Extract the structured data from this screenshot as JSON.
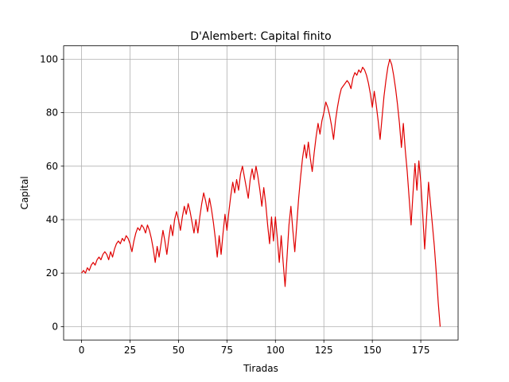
{
  "chart_data": {
    "type": "line",
    "title": "D'Alembert: Capital finito",
    "xlabel": "Tiradas",
    "ylabel": "Capital",
    "xlim": [
      -9.25,
      194.25
    ],
    "ylim": [
      -5,
      105
    ],
    "xticks": [
      0,
      25,
      50,
      75,
      100,
      125,
      150,
      175
    ],
    "yticks": [
      0,
      20,
      40,
      60,
      80,
      100
    ],
    "grid": true,
    "series": [
      {
        "color": "#e00000",
        "y": [
          20,
          21,
          20,
          22,
          21,
          23,
          24,
          23,
          25,
          26,
          25,
          27,
          28,
          27,
          25,
          28,
          26,
          29,
          31,
          32,
          31,
          33,
          32,
          34,
          33,
          31,
          28,
          32,
          35,
          37,
          36,
          38,
          37,
          35,
          38,
          36,
          33,
          29,
          24,
          30,
          26,
          31,
          36,
          32,
          27,
          33,
          38,
          34,
          40,
          43,
          40,
          36,
          41,
          45,
          42,
          46,
          43,
          39,
          35,
          40,
          35,
          41,
          46,
          50,
          47,
          43,
          48,
          44,
          39,
          33,
          26,
          34,
          27,
          35,
          42,
          36,
          43,
          49,
          54,
          50,
          55,
          51,
          57,
          60,
          56,
          52,
          48,
          55,
          59,
          55,
          60,
          56,
          51,
          45,
          52,
          46,
          38,
          31,
          41,
          32,
          41,
          33,
          24,
          34,
          24,
          15,
          26,
          38,
          45,
          36,
          28,
          38,
          48,
          56,
          63,
          68,
          63,
          69,
          63,
          58,
          65,
          71,
          76,
          72,
          77,
          80,
          84,
          82,
          79,
          75,
          70,
          77,
          82,
          86,
          89,
          90,
          91,
          92,
          91,
          89,
          93,
          95,
          94,
          96,
          95,
          97,
          96,
          94,
          91,
          87,
          82,
          88,
          83,
          77,
          70,
          78,
          86,
          92,
          97,
          100,
          98,
          94,
          89,
          83,
          76,
          67,
          76,
          66,
          58,
          48,
          38,
          50,
          61,
          51,
          62,
          54,
          42,
          29,
          41,
          54,
          46,
          38,
          30,
          20,
          9,
          0
        ]
      }
    ]
  }
}
